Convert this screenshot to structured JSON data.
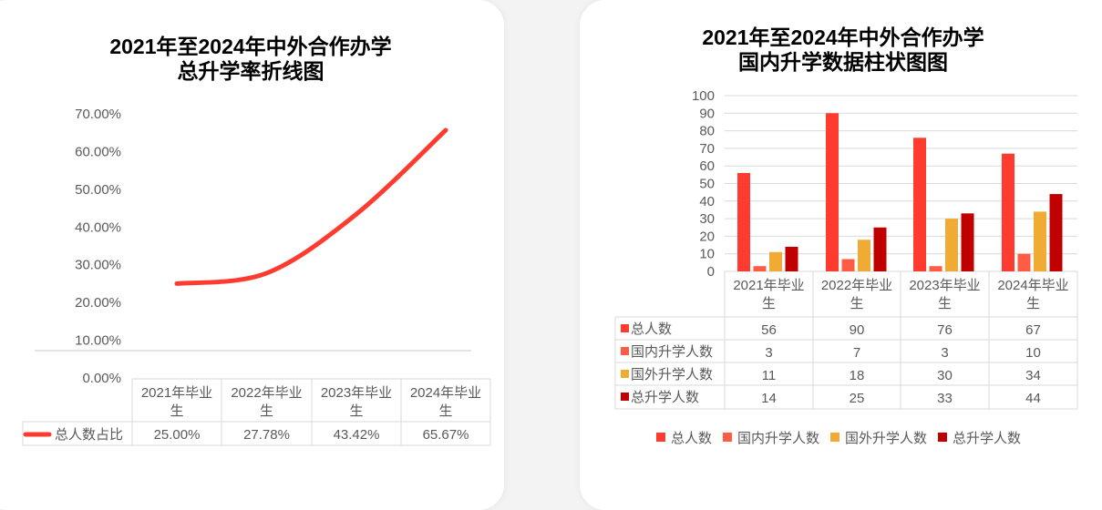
{
  "chart_data": [
    {
      "type": "line",
      "title_lines": [
        "2021年至2024年中外合作办学",
        "总升学率折线图"
      ],
      "categories": [
        "2021年毕业生",
        "2022年毕业生",
        "2023年毕业生",
        "2024年毕业生"
      ],
      "category_lines": [
        [
          "2021年毕业",
          "生"
        ],
        [
          "2022年毕业",
          "生"
        ],
        [
          "2023年毕业",
          "生"
        ],
        [
          "2024年毕业",
          "生"
        ]
      ],
      "series": [
        {
          "name": "总人数占比",
          "values": [
            25.0,
            27.78,
            43.42,
            65.67
          ],
          "labels": [
            "25.00%",
            "27.78%",
            "43.42%",
            "65.67%"
          ],
          "color": "#ff3b30"
        }
      ],
      "yticks": [
        "0.00%",
        "10.00%",
        "20.00%",
        "30.00%",
        "40.00%",
        "50.00%",
        "60.00%",
        "70.00%"
      ],
      "ylim": [
        0,
        70
      ],
      "smooth": true,
      "data_table": true
    },
    {
      "type": "bar",
      "title_lines": [
        "2021年至2024年中外合作办学",
        "国内升学数据柱状图图"
      ],
      "categories": [
        "2021年毕业生",
        "2022年毕业生",
        "2023年毕业生",
        "2024年毕业生"
      ],
      "category_lines": [
        [
          "2021年毕业",
          "生"
        ],
        [
          "2022年毕业",
          "生"
        ],
        [
          "2023年毕业",
          "生"
        ],
        [
          "2024年毕业",
          "生"
        ]
      ],
      "series": [
        {
          "name": "总人数",
          "values": [
            56,
            90,
            76,
            67
          ],
          "color": "#ff3b30"
        },
        {
          "name": "国内升学人数",
          "values": [
            3,
            7,
            3,
            10
          ],
          "color": "#ff5c45"
        },
        {
          "name": "国外升学人数",
          "values": [
            11,
            18,
            30,
            34
          ],
          "color": "#f0ab35"
        },
        {
          "name": "总升学人数",
          "values": [
            14,
            25,
            33,
            44
          ],
          "color": "#c00000"
        }
      ],
      "yticks": [
        "0",
        "10",
        "20",
        "30",
        "40",
        "50",
        "60",
        "70",
        "80",
        "90",
        "100"
      ],
      "ylim": [
        0,
        100
      ],
      "grid": true,
      "legend": "bottom",
      "data_table": true
    }
  ]
}
